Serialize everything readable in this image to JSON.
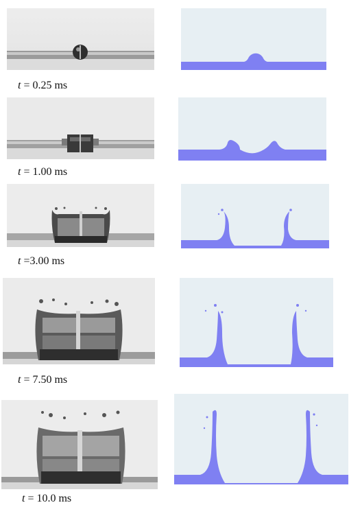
{
  "colors": {
    "sim_background": "#e7eff3",
    "sim_liquid": "#7f80f2",
    "photo_background": "#e9e9e9"
  },
  "frames": [
    {
      "caption_var": "t",
      "caption_rest": " = 0.25 ms"
    },
    {
      "caption_var": "t",
      "caption_rest": " = 1.00 ms"
    },
    {
      "caption_var": "t",
      "caption_rest": " =3.00 ms"
    },
    {
      "caption_var": "t",
      "caption_rest": " = 7.50 ms"
    },
    {
      "caption_var": "t",
      "caption_rest": " = 10.0 ms"
    }
  ]
}
